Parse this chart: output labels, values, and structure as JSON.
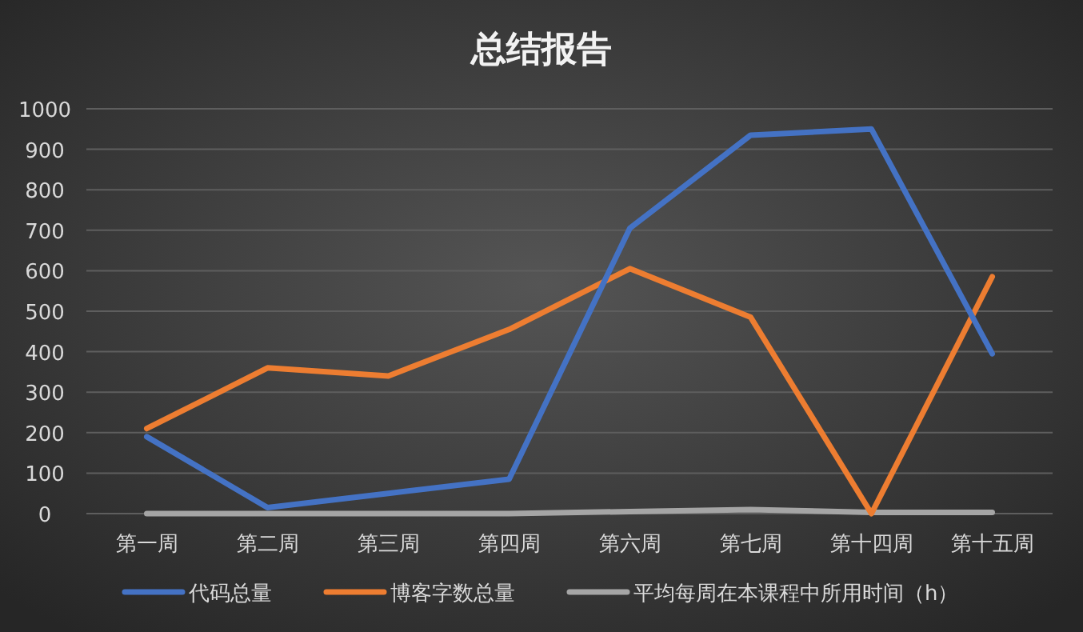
{
  "chart_data": {
    "type": "line",
    "title": "总结报告",
    "categories": [
      "第一周",
      "第二周",
      "第三周",
      "第四周",
      "第六周",
      "第七周",
      "第十四周",
      "第十五周"
    ],
    "series": [
      {
        "name": "代码总量",
        "color": "#4472c4",
        "values": [
          190,
          15,
          50,
          85,
          705,
          935,
          950,
          395
        ]
      },
      {
        "name": "博客字数总量",
        "color": "#ed7d31",
        "values": [
          210,
          360,
          340,
          455,
          605,
          485,
          0,
          585
        ]
      },
      {
        "name": "平均每周在本课程中所用时间（h）",
        "color": "#a5a5a5",
        "values": [
          0,
          0,
          0,
          0,
          5,
          10,
          3,
          3
        ]
      }
    ],
    "ylim": [
      0,
      1000
    ],
    "yticks": [
      0,
      100,
      200,
      300,
      400,
      500,
      600,
      700,
      800,
      900,
      1000
    ],
    "grid": "y",
    "legend": "bottom",
    "marker": "none",
    "line_style": "solid"
  }
}
